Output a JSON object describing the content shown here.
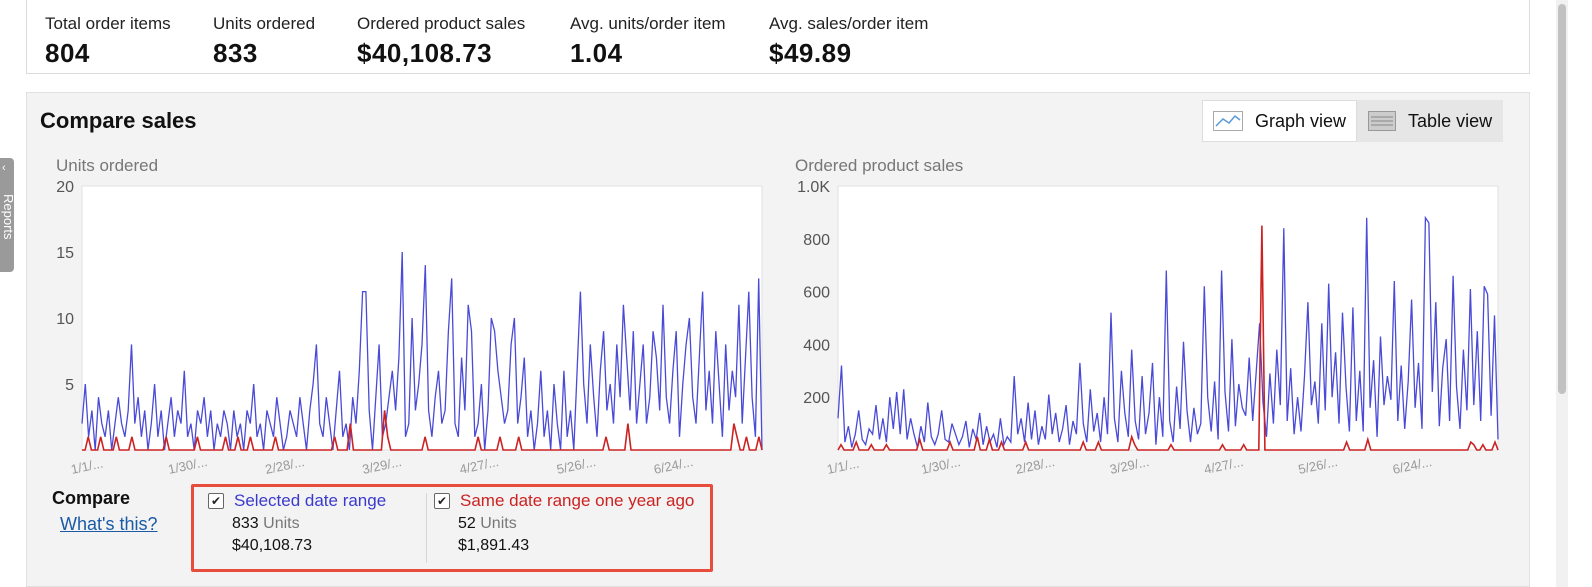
{
  "metrics": [
    {
      "label": "Total order items",
      "value": "804"
    },
    {
      "label": "Units ordered",
      "value": "833"
    },
    {
      "label": "Ordered product sales",
      "value": "$40,108.73"
    },
    {
      "label": "Avg. units/order item",
      "value": "1.04"
    },
    {
      "label": "Avg. sales/order item",
      "value": "$49.89"
    }
  ],
  "panel": {
    "title": "Compare sales",
    "graph_view_label": "Graph view",
    "table_view_label": "Table view"
  },
  "side_tab": {
    "label": "Reports"
  },
  "colors": {
    "selected": "#4a4ad8",
    "last_year": "#cc2222",
    "highlight_box": "#e74c3c"
  },
  "chart_data": [
    {
      "type": "line",
      "title": "Units ordered",
      "ylim": [
        0,
        20
      ],
      "yticks": [
        "20",
        "15",
        "10",
        "5"
      ],
      "xtick_labels": [
        "1/1/...",
        "1/30/...",
        "2/28/...",
        "3/29/...",
        "4/27/...",
        "5/26/...",
        "6/24/..."
      ],
      "series": [
        {
          "name": "Selected date range",
          "values": [
            2,
            5,
            1,
            3,
            0,
            4,
            2,
            1,
            3,
            0,
            2,
            4,
            2,
            1,
            3,
            8,
            2,
            4,
            1,
            3,
            0,
            2,
            5,
            1,
            3,
            0,
            2,
            4,
            1,
            3,
            2,
            6,
            1,
            2,
            0,
            3,
            2,
            4,
            1,
            3,
            0,
            2,
            1,
            3,
            2,
            0,
            3,
            1,
            2,
            0,
            3,
            2,
            5,
            1,
            2,
            0,
            3,
            2,
            1,
            4,
            2,
            0,
            1,
            3,
            2,
            1,
            4,
            2,
            0,
            3,
            5,
            8,
            2,
            1,
            4,
            2,
            0,
            3,
            6,
            1,
            2,
            0,
            4,
            2,
            6,
            12,
            12,
            3,
            0,
            4,
            8,
            1,
            2,
            4,
            6,
            3,
            7,
            15,
            1,
            2,
            10,
            3,
            5,
            8,
            14,
            3,
            1,
            4,
            6,
            2,
            3,
            9,
            13,
            2,
            1,
            7,
            3,
            11,
            9,
            1,
            2,
            5,
            0,
            3,
            10,
            9,
            6,
            4,
            2,
            3,
            8,
            10,
            2,
            4,
            7,
            1,
            3,
            0,
            2,
            6,
            1,
            3,
            0,
            5,
            2,
            0,
            6,
            1,
            3,
            0,
            6,
            12,
            5,
            2,
            8,
            4,
            1,
            6,
            9,
            3,
            5,
            2,
            8,
            4,
            11,
            7,
            3,
            9,
            2,
            5,
            8,
            2,
            4,
            9,
            7,
            3,
            11,
            4,
            2,
            6,
            9,
            1,
            5,
            8,
            10,
            4,
            2,
            7,
            12,
            3,
            6,
            2,
            9,
            5,
            1,
            8,
            3,
            6,
            4,
            11,
            2,
            7,
            12,
            4,
            1,
            13,
            0
          ]
        },
        {
          "name": "Same date range one year ago",
          "values": [
            0,
            0,
            1,
            0,
            0,
            0,
            1,
            0,
            0,
            0,
            0,
            1,
            0,
            0,
            0,
            0,
            1,
            0,
            0,
            0,
            0,
            0,
            0,
            0,
            0,
            0,
            0,
            1,
            0,
            0,
            0,
            0,
            0,
            0,
            0,
            0,
            0,
            1,
            0,
            0,
            0,
            0,
            0,
            0,
            0,
            0,
            1,
            0,
            0,
            0,
            1,
            0,
            0,
            0,
            1,
            0,
            0,
            0,
            0,
            0,
            0,
            0,
            1,
            0,
            0,
            0,
            0,
            0,
            0,
            0,
            0,
            0,
            0,
            0,
            0,
            0,
            0,
            0,
            0,
            0,
            0,
            1,
            0,
            0,
            0,
            0,
            2,
            0,
            0,
            0,
            0,
            0,
            0,
            0,
            0,
            0,
            0,
            3,
            1,
            0,
            0,
            0,
            0,
            0,
            0,
            0,
            0,
            0,
            0,
            0,
            1,
            0,
            0,
            0,
            0,
            0,
            0,
            0,
            0,
            0,
            0,
            0,
            0,
            0,
            0,
            0,
            0,
            1,
            0,
            0,
            0,
            0,
            0,
            0,
            1,
            0,
            0,
            0,
            0,
            0,
            1,
            0,
            0,
            0,
            0,
            0,
            0,
            0,
            0,
            0,
            0,
            0,
            0,
            0,
            0,
            0,
            0,
            0,
            0,
            0,
            0,
            0,
            0,
            0,
            0,
            0,
            0,
            0,
            1,
            0,
            0,
            0,
            0,
            0,
            0,
            2,
            0,
            0,
            0,
            0,
            0,
            0,
            0,
            0,
            0,
            0,
            0,
            0,
            0,
            0,
            0,
            0,
            0,
            0,
            0,
            0,
            0,
            0,
            0,
            0,
            0,
            0,
            0,
            0,
            0,
            0,
            0,
            0,
            0,
            2,
            1,
            0,
            0,
            1,
            0,
            0,
            0,
            1,
            0
          ]
        }
      ]
    },
    {
      "type": "line",
      "title": "Ordered product sales",
      "ylim": [
        0,
        1000
      ],
      "yticks": [
        "1.0K",
        "800",
        "600",
        "400",
        "200"
      ],
      "xtick_labels": [
        "1/1/...",
        "1/30/...",
        "2/28/...",
        "3/29/...",
        "4/27/...",
        "5/26/...",
        "6/24/..."
      ],
      "series": [
        {
          "name": "Selected date range",
          "values": [
            120,
            320,
            30,
            90,
            10,
            60,
            150,
            40,
            20,
            80,
            60,
            170,
            40,
            120,
            30,
            200,
            80,
            220,
            60,
            230,
            40,
            120,
            60,
            10,
            90,
            30,
            180,
            50,
            20,
            60,
            150,
            40,
            30,
            100,
            60,
            20,
            50,
            110,
            10,
            80,
            40,
            140,
            20,
            90,
            30,
            60,
            10,
            120,
            20,
            50,
            30,
            280,
            60,
            120,
            30,
            180,
            40,
            150,
            20,
            90,
            40,
            210,
            60,
            140,
            30,
            80,
            170,
            20,
            110,
            60,
            330,
            100,
            30,
            230,
            70,
            140,
            30,
            200,
            60,
            520,
            120,
            30,
            300,
            140,
            50,
            380,
            110,
            40,
            280,
            60,
            140,
            330,
            20,
            200,
            50,
            680,
            110,
            30,
            240,
            80,
            410,
            150,
            30,
            160,
            60,
            100,
            620,
            200,
            70,
            260,
            40,
            680,
            220,
            70,
            420,
            90,
            250,
            160,
            130,
            350,
            110,
            290,
            480,
            180,
            50,
            290,
            100,
            380,
            170,
            840,
            110,
            310,
            60,
            200,
            70,
            280,
            560,
            170,
            260,
            100,
            480,
            150,
            630,
            200,
            370,
            100,
            520,
            240,
            70,
            540,
            110,
            300,
            70,
            880,
            160,
            340,
            50,
            430,
            170,
            280,
            190,
            640,
            110,
            320,
            80,
            260,
            570,
            160,
            330,
            80,
            880,
            860,
            220,
            560,
            90,
            310,
            420,
            110,
            660,
            240,
            80,
            380,
            150,
            610,
            170,
            450,
            110,
            620,
            590,
            130,
            510,
            40
          ]
        },
        {
          "name": "Same date range one year ago",
          "values": [
            0,
            20,
            0,
            0,
            0,
            0,
            30,
            0,
            0,
            0,
            0,
            20,
            0,
            0,
            0,
            0,
            20,
            0,
            0,
            0,
            0,
            0,
            0,
            0,
            0,
            0,
            0,
            40,
            0,
            0,
            0,
            0,
            0,
            0,
            0,
            0,
            0,
            30,
            0,
            0,
            0,
            0,
            0,
            0,
            0,
            0,
            50,
            0,
            0,
            0,
            40,
            0,
            0,
            0,
            30,
            0,
            0,
            0,
            0,
            0,
            0,
            0,
            30,
            0,
            0,
            0,
            0,
            0,
            0,
            0,
            0,
            0,
            0,
            0,
            0,
            0,
            0,
            0,
            0,
            0,
            0,
            30,
            0,
            0,
            0,
            0,
            30,
            0,
            0,
            0,
            0,
            0,
            0,
            0,
            0,
            0,
            0,
            50,
            20,
            0,
            0,
            0,
            0,
            0,
            0,
            0,
            0,
            0,
            0,
            0,
            20,
            0,
            0,
            0,
            0,
            0,
            0,
            0,
            0,
            0,
            0,
            0,
            0,
            0,
            0,
            0,
            0,
            20,
            0,
            0,
            0,
            0,
            0,
            0,
            20,
            0,
            0,
            0,
            0,
            0,
            850,
            0,
            0,
            0,
            0,
            0,
            0,
            0,
            0,
            0,
            0,
            0,
            0,
            0,
            0,
            0,
            0,
            0,
            0,
            0,
            0,
            0,
            0,
            0,
            0,
            0,
            0,
            0,
            30,
            0,
            0,
            0,
            0,
            0,
            0,
            40,
            0,
            0,
            0,
            0,
            0,
            0,
            0,
            0,
            0,
            0,
            0,
            0,
            0,
            0,
            0,
            0,
            0,
            0,
            0,
            0,
            0,
            0,
            0,
            0,
            0,
            0,
            0,
            0,
            0,
            0,
            0,
            0,
            0,
            30,
            20,
            0,
            0,
            20,
            0,
            0,
            0,
            30,
            0
          ]
        }
      ]
    }
  ],
  "compare": {
    "label": "Compare",
    "whats_this": "What's this?",
    "selected": {
      "label": "Selected date range",
      "units_value": "833",
      "units_label": "Units",
      "sales": "$40,108.73"
    },
    "last_year": {
      "label": "Same date range one year ago",
      "units_value": "52",
      "units_label": "Units",
      "sales": "$1,891.43"
    }
  }
}
